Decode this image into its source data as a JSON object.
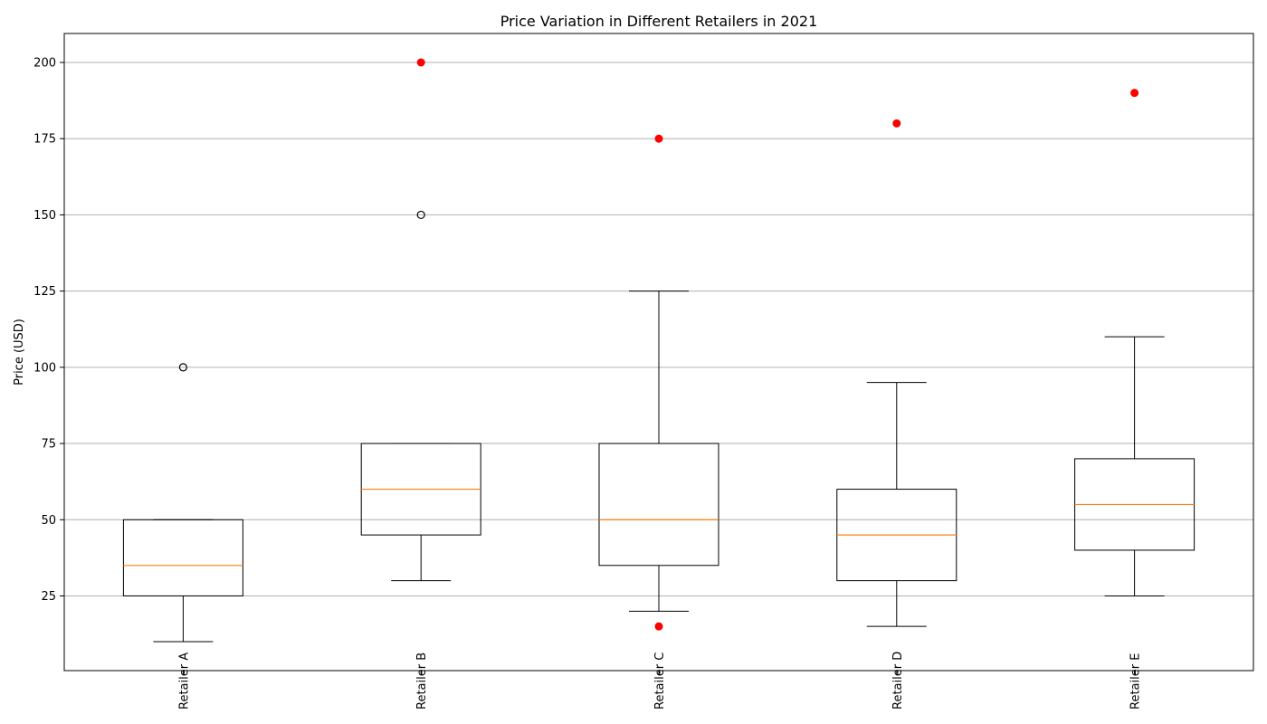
{
  "chart_data": {
    "type": "box",
    "title": "Price Variation in Different Retailers in 2021",
    "xlabel": "",
    "ylabel": "Price (USD)",
    "ylim": [
      0.5,
      209.5
    ],
    "yticks": [
      25,
      50,
      75,
      100,
      125,
      150,
      175,
      200
    ],
    "grid": "horizontal",
    "categories": [
      "Retailer A",
      "Retailer B",
      "Retailer C",
      "Retailer D",
      "Retailer E"
    ],
    "boxes": [
      {
        "whisker_low": 10,
        "q1": 25,
        "median": 35,
        "q3": 50,
        "whisker_high": 50,
        "fliers": [
          100
        ],
        "extra_points": []
      },
      {
        "whisker_low": 30,
        "q1": 45,
        "median": 60,
        "q3": 75,
        "whisker_high": 75,
        "fliers": [
          150
        ],
        "extra_points": [
          200
        ]
      },
      {
        "whisker_low": 20,
        "q1": 35,
        "median": 50,
        "q3": 75,
        "whisker_high": 125,
        "fliers": [],
        "extra_points": [
          15,
          175
        ]
      },
      {
        "whisker_low": 15,
        "q1": 30,
        "median": 45,
        "q3": 60,
        "whisker_high": 95,
        "fliers": [],
        "extra_points": [
          180
        ]
      },
      {
        "whisker_low": 25,
        "q1": 40,
        "median": 55,
        "q3": 70,
        "whisker_high": 110,
        "fliers": [],
        "extra_points": [
          190
        ]
      }
    ],
    "colors": {
      "box": "#000000",
      "median": "#ff7f0e",
      "extra_point": "#ff0000",
      "grid": "#b0b0b0"
    }
  }
}
